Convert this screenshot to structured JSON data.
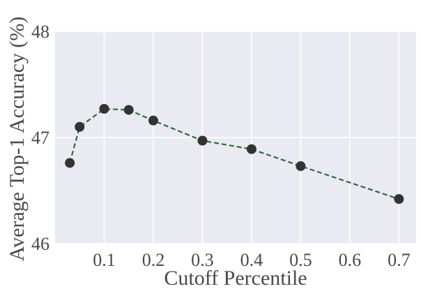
{
  "chart_data": {
    "type": "line",
    "xlabel": "Cutoff Percentile",
    "ylabel": "Average Top-1 Accuracy (%)",
    "xlim": [
      0.0,
      0.735
    ],
    "ylim": [
      46.0,
      48.0
    ],
    "x_ticks": [
      0.1,
      0.2,
      0.3,
      0.4,
      0.5,
      0.6,
      0.7
    ],
    "x_tick_labels": [
      "0.1",
      "0.2",
      "0.3",
      "0.4",
      "0.5",
      "0.6",
      "0.7"
    ],
    "y_ticks": [
      46,
      47,
      48
    ],
    "y_tick_labels": [
      "46",
      "47",
      "48"
    ],
    "grid": true,
    "series": [
      {
        "x": [
          0.03,
          0.05,
          0.1,
          0.15,
          0.2,
          0.3,
          0.4,
          0.5,
          0.7
        ],
        "y": [
          46.76,
          47.1,
          47.27,
          47.26,
          47.16,
          46.97,
          46.89,
          46.73,
          46.42
        ],
        "line_color": "#2e6b3e",
        "line_style": "dashed",
        "marker_color": "#333333"
      }
    ],
    "colors": {
      "plot_background": "#eaeaf2",
      "grid": "#ffffff",
      "text": "#4a4a4a"
    }
  }
}
